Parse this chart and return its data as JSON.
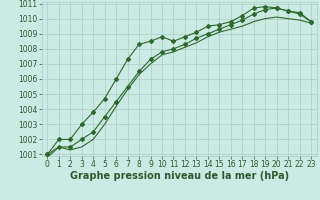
{
  "title": "Graphe pression niveau de la mer (hPa)",
  "x": [
    0,
    1,
    2,
    3,
    4,
    5,
    6,
    7,
    8,
    9,
    10,
    11,
    12,
    13,
    14,
    15,
    16,
    17,
    18,
    19,
    20,
    21,
    22,
    23
  ],
  "line_a": [
    1001.0,
    1002.0,
    1002.0,
    1003.0,
    1003.8,
    1004.7,
    1006.0,
    1007.3,
    1008.3,
    1008.5,
    1008.8,
    1008.5,
    1008.8,
    1009.1,
    1009.5,
    1009.6,
    1009.8,
    1010.2,
    1010.7,
    1010.8,
    1010.7,
    1010.5,
    1010.4,
    1009.8
  ],
  "line_b": [
    1001.0,
    1001.5,
    1001.5,
    1002.0,
    1002.5,
    1003.5,
    1004.5,
    1005.5,
    1006.5,
    1007.3,
    1007.8,
    1008.0,
    1008.3,
    1008.7,
    1009.0,
    1009.3,
    1009.6,
    1009.9,
    1010.3,
    1010.6,
    1010.7,
    1010.5,
    1010.3,
    1009.8
  ],
  "line_c": [
    1000.8,
    1001.5,
    1001.3,
    1001.5,
    1002.0,
    1003.0,
    1004.2,
    1005.3,
    1006.3,
    1007.0,
    1007.6,
    1007.8,
    1008.1,
    1008.4,
    1008.8,
    1009.1,
    1009.3,
    1009.5,
    1009.8,
    1010.0,
    1010.1,
    1010.0,
    1009.9,
    1009.7
  ],
  "ylim": [
    1001,
    1011
  ],
  "xlim": [
    -0.5,
    23.5
  ],
  "yticks": [
    1001,
    1002,
    1003,
    1004,
    1005,
    1006,
    1007,
    1008,
    1009,
    1010,
    1011
  ],
  "xticks": [
    0,
    1,
    2,
    3,
    4,
    5,
    6,
    7,
    8,
    9,
    10,
    11,
    12,
    13,
    14,
    15,
    16,
    17,
    18,
    19,
    20,
    21,
    22,
    23
  ],
  "line_color": "#2d6a2d",
  "bg_color": "#cceae4",
  "grid_color": "#aaccc6",
  "tick_color": "#2d5a2d",
  "title_fontsize": 7,
  "tick_fontsize": 5.5
}
